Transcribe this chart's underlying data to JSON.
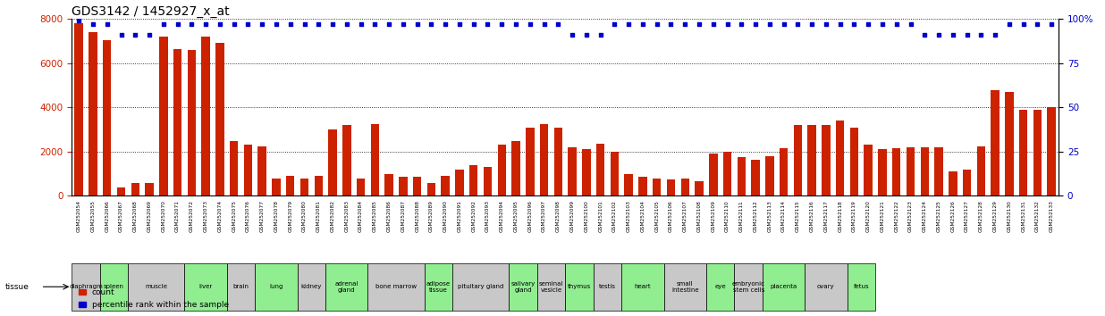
{
  "title": "GDS3142 / 1452927_x_at",
  "gsm_labels": [
    "GSM252054",
    "GSM252055",
    "GSM252066",
    "GSM252067",
    "GSM252068",
    "GSM252069",
    "GSM252070",
    "GSM252071",
    "GSM252072",
    "GSM252073",
    "GSM252074",
    "GSM252075",
    "GSM252076",
    "GSM252077",
    "GSM252078",
    "GSM252079",
    "GSM252080",
    "GSM252081",
    "GSM252082",
    "GSM252083",
    "GSM252084",
    "GSM252085",
    "GSM252086",
    "GSM252087",
    "GSM252088",
    "GSM252089",
    "GSM252090",
    "GSM252091",
    "GSM252092",
    "GSM252093",
    "GSM252094",
    "GSM252095",
    "GSM252096",
    "GSM252097",
    "GSM252098",
    "GSM252099",
    "GSM252100",
    "GSM252101",
    "GSM252102",
    "GSM252103",
    "GSM252104",
    "GSM252105",
    "GSM252106",
    "GSM252107",
    "GSM252108",
    "GSM252109",
    "GSM252110",
    "GSM252111",
    "GSM252112",
    "GSM252113",
    "GSM252114",
    "GSM252115",
    "GSM252116",
    "GSM252117",
    "GSM252118",
    "GSM252119",
    "GSM252120",
    "GSM252121",
    "GSM252122",
    "GSM252123",
    "GSM252124",
    "GSM252125",
    "GSM252126",
    "GSM252127",
    "GSM252128",
    "GSM252129",
    "GSM252130",
    "GSM252131",
    "GSM252132",
    "GSM252133"
  ],
  "bar_heights": [
    7800,
    7400,
    7050,
    400,
    600,
    600,
    7200,
    6650,
    6600,
    7200,
    6900,
    2500,
    2300,
    2250,
    800,
    900,
    800,
    900,
    3000,
    3200,
    800,
    3250,
    1000,
    850,
    850,
    600,
    900,
    1200,
    1400,
    1300,
    2300,
    2500,
    3100,
    3250,
    3100,
    2200,
    2100,
    2350,
    2000,
    1000,
    850,
    800,
    750,
    800,
    650,
    1900,
    2000,
    1750,
    1650,
    1800,
    2150,
    3200,
    3200,
    3200,
    3400,
    3100,
    2300,
    2100,
    2150,
    2200,
    2200,
    2200,
    1100,
    1200,
    2250,
    4800,
    4700,
    3900,
    3900,
    4000
  ],
  "pct_ranks": [
    99,
    97,
    97,
    91,
    91,
    91,
    97,
    97,
    97,
    97,
    97,
    97,
    97,
    97,
    97,
    97,
    97,
    97,
    97,
    97,
    97,
    97,
    97,
    97,
    97,
    97,
    97,
    97,
    97,
    97,
    97,
    97,
    97,
    97,
    97,
    91,
    91,
    91,
    97,
    97,
    97,
    97,
    97,
    97,
    97,
    97,
    97,
    97,
    97,
    97,
    97,
    97,
    97,
    97,
    97,
    97,
    97,
    97,
    97,
    97,
    91,
    91,
    91,
    91,
    91,
    91,
    97,
    97,
    97,
    97
  ],
  "tissue_groups": [
    {
      "label": "diaphragm",
      "start": 0,
      "end": 2,
      "color": "#c8c8c8"
    },
    {
      "label": "spleen",
      "start": 2,
      "end": 4,
      "color": "#90ee90"
    },
    {
      "label": "muscle",
      "start": 4,
      "end": 8,
      "color": "#c8c8c8"
    },
    {
      "label": "liver",
      "start": 8,
      "end": 11,
      "color": "#90ee90"
    },
    {
      "label": "brain",
      "start": 11,
      "end": 13,
      "color": "#c8c8c8"
    },
    {
      "label": "lung",
      "start": 13,
      "end": 16,
      "color": "#90ee90"
    },
    {
      "label": "kidney",
      "start": 16,
      "end": 18,
      "color": "#c8c8c8"
    },
    {
      "label": "adrenal\ngland",
      "start": 18,
      "end": 21,
      "color": "#90ee90"
    },
    {
      "label": "bone marrow",
      "start": 21,
      "end": 25,
      "color": "#c8c8c8"
    },
    {
      "label": "adipose\ntissue",
      "start": 25,
      "end": 27,
      "color": "#90ee90"
    },
    {
      "label": "pituitary gland",
      "start": 27,
      "end": 31,
      "color": "#c8c8c8"
    },
    {
      "label": "salivary\ngland",
      "start": 31,
      "end": 33,
      "color": "#90ee90"
    },
    {
      "label": "seminal\nvesicle",
      "start": 33,
      "end": 35,
      "color": "#c8c8c8"
    },
    {
      "label": "thymus",
      "start": 35,
      "end": 37,
      "color": "#90ee90"
    },
    {
      "label": "testis",
      "start": 37,
      "end": 39,
      "color": "#c8c8c8"
    },
    {
      "label": "heart",
      "start": 39,
      "end": 42,
      "color": "#90ee90"
    },
    {
      "label": "small\nintestine",
      "start": 42,
      "end": 45,
      "color": "#c8c8c8"
    },
    {
      "label": "eye",
      "start": 45,
      "end": 47,
      "color": "#90ee90"
    },
    {
      "label": "embryonic\nstem cells",
      "start": 47,
      "end": 49,
      "color": "#c8c8c8"
    },
    {
      "label": "placenta",
      "start": 49,
      "end": 52,
      "color": "#90ee90"
    },
    {
      "label": "ovary",
      "start": 52,
      "end": 55,
      "color": "#c8c8c8"
    },
    {
      "label": "fetus",
      "start": 55,
      "end": 57,
      "color": "#90ee90"
    }
  ],
  "bar_color": "#cc2200",
  "dot_color": "#0000cc",
  "ylim_left": [
    0,
    8000
  ],
  "ylim_right": [
    0,
    100
  ],
  "yticks_left": [
    0,
    2000,
    4000,
    6000,
    8000
  ],
  "yticks_right": [
    0,
    25,
    50,
    75,
    100
  ],
  "title_fontsize": 10
}
